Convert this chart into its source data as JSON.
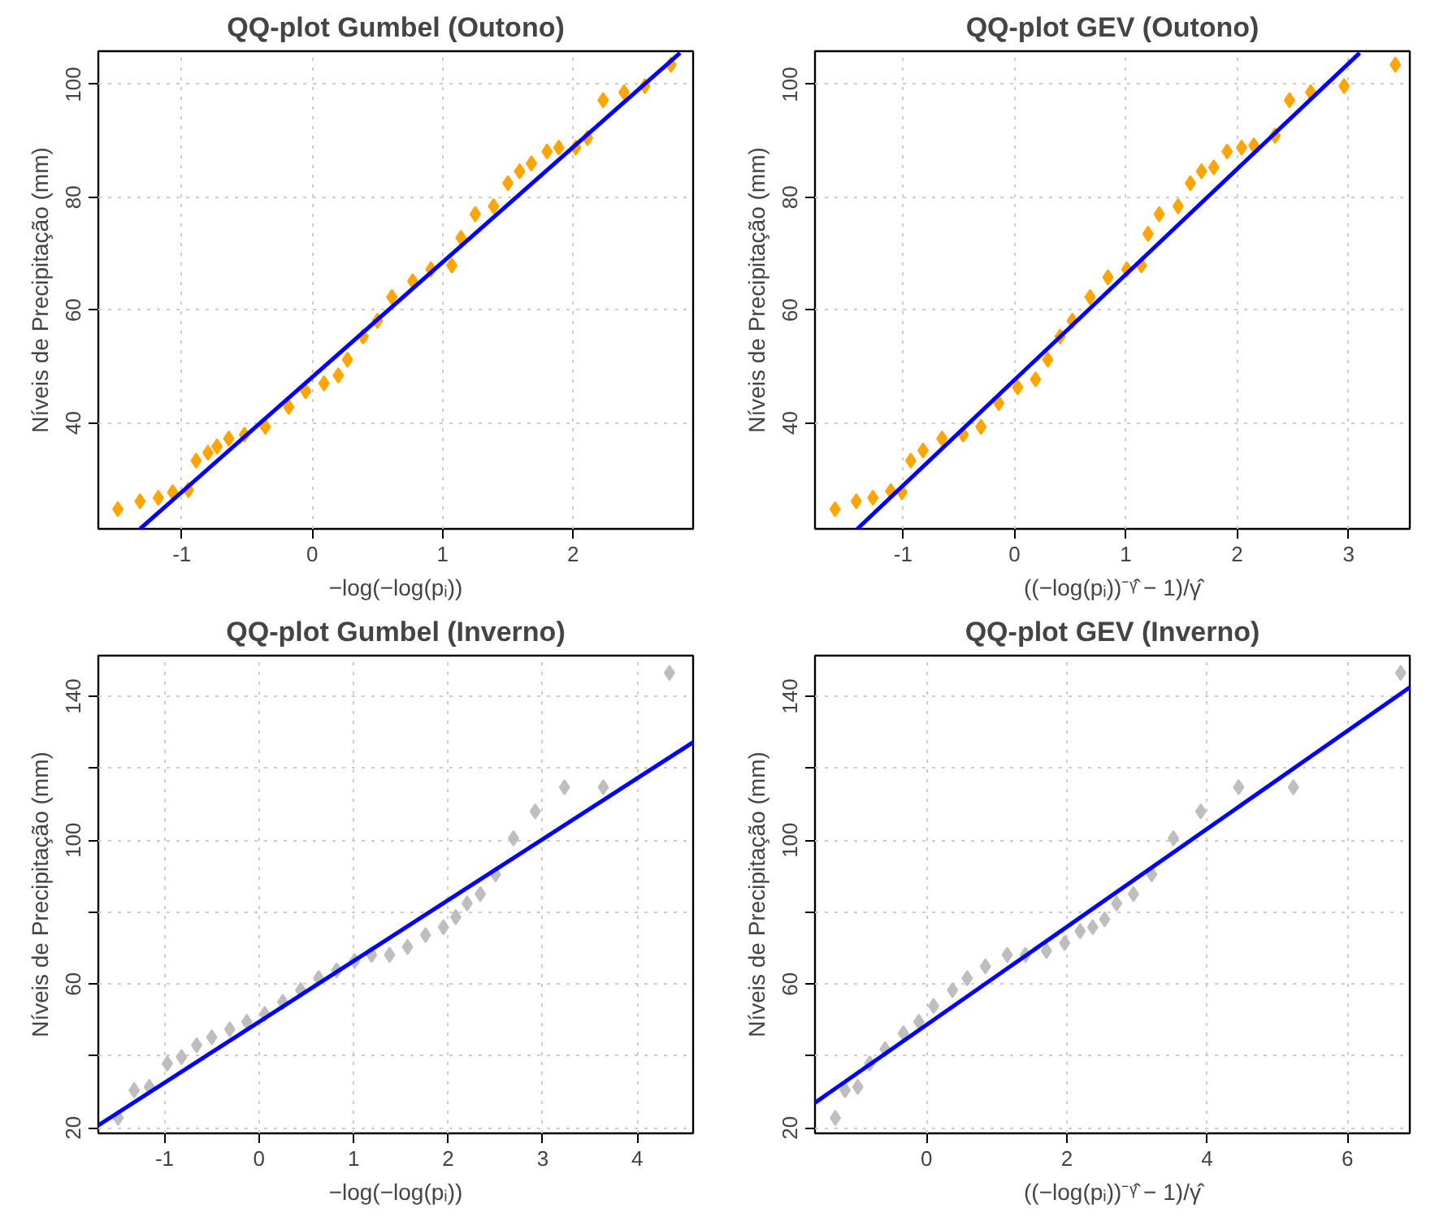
{
  "chart_data": [
    {
      "type": "scatter",
      "title": "QQ-plot Gumbel (Outono)",
      "xlabel": "−log(−log(pᵢ))",
      "ylabel": "Níveis de Precipitação (mm)",
      "xlim": [
        -1.64,
        2.92
      ],
      "ylim": [
        21.2,
        105.9
      ],
      "xticks": [
        -1,
        0,
        1,
        2
      ],
      "yticks": [
        40,
        60,
        80,
        100
      ],
      "grid": true,
      "series": [
        {
          "marker": "diamond",
          "color": "#ffa500",
          "x": [
            -1.49,
            -1.32,
            -1.18,
            -1.07,
            -0.95,
            -0.89,
            -0.8,
            -0.73,
            -0.64,
            -0.52,
            -0.36,
            -0.18,
            -0.05,
            0.09,
            0.2,
            0.27,
            0.39,
            0.5,
            0.61,
            0.77,
            0.91,
            1.07,
            1.14,
            1.25,
            1.39,
            1.5,
            1.59,
            1.68,
            1.8,
            1.89,
            2.02,
            2.11,
            2.23,
            2.39,
            2.55,
            2.75
          ],
          "values": [
            24.7,
            26.1,
            26.7,
            27.7,
            28.1,
            33.3,
            34.7,
            35.8,
            37.2,
            37.9,
            39.3,
            42.8,
            45.6,
            47.0,
            48.4,
            51.2,
            55.3,
            58.1,
            62.3,
            65.1,
            67.2,
            67.9,
            72.8,
            77.0,
            78.4,
            82.5,
            84.6,
            86.0,
            88.1,
            88.8,
            88.8,
            90.5,
            97.2,
            98.6,
            99.7,
            103.5
          ]
        },
        {
          "type": "line",
          "color": "#0000ff",
          "marker": "none",
          "x": [
            -1.32,
            2.82
          ],
          "values": [
            21.2,
            105.6
          ]
        }
      ]
    },
    {
      "type": "scatter",
      "title": "QQ-plot GEV (Outono)",
      "xlabel": "((−log(pᵢ))⁻ᵞ̂ − 1)/γ̂",
      "ylabel": "Níveis de Precipitação (mm)",
      "xlim": [
        -1.79,
        3.55
      ],
      "ylim": [
        21.2,
        105.9
      ],
      "xticks": [
        -1,
        0,
        1,
        2,
        3
      ],
      "yticks": [
        40,
        60,
        80,
        100
      ],
      "grid": true,
      "series": [
        {
          "marker": "diamond",
          "color": "#ffa500",
          "x": [
            -1.61,
            -1.42,
            -1.27,
            -1.11,
            -1.01,
            -0.93,
            -0.82,
            -0.65,
            -0.46,
            -0.3,
            -0.14,
            0.03,
            0.19,
            0.3,
            0.41,
            0.52,
            0.68,
            0.84,
            1.01,
            1.14,
            1.2,
            1.3,
            1.47,
            1.58,
            1.68,
            1.79,
            1.91,
            2.04,
            2.15,
            2.34,
            2.47,
            2.66,
            2.96,
            3.42
          ],
          "values": [
            24.7,
            26.1,
            26.7,
            27.9,
            27.7,
            33.3,
            35.1,
            37.2,
            37.9,
            39.3,
            43.5,
            46.3,
            47.7,
            51.2,
            55.3,
            58.1,
            62.3,
            65.8,
            67.2,
            67.9,
            73.5,
            77.0,
            78.4,
            82.5,
            84.6,
            85.3,
            88.1,
            88.8,
            89.2,
            90.9,
            97.2,
            98.6,
            99.7,
            103.5
          ]
        },
        {
          "type": "line",
          "color": "#0000ff",
          "marker": "none",
          "x": [
            -1.41,
            3.1
          ],
          "values": [
            21.2,
            105.6
          ]
        }
      ]
    },
    {
      "type": "scatter",
      "title": "QQ-plot Gumbel (Inverno)",
      "xlabel": "−log(−log(pᵢ))",
      "ylabel": "Níveis de Precipitação (mm)",
      "xlim": [
        -1.7,
        4.59
      ],
      "ylim": [
        18.5,
        151.3
      ],
      "xticks": [
        -1,
        0,
        1,
        2,
        3,
        4
      ],
      "yticks": [
        20,
        {
          "value": 40,
          "label": null
        },
        60,
        {
          "value": 80,
          "label": null
        },
        100,
        {
          "value": 120,
          "label": null
        },
        140
      ],
      "grid": true,
      "series": [
        {
          "marker": "diamond",
          "color": "#bebebe",
          "x": [
            -1.49,
            -1.32,
            -1.16,
            -0.97,
            -0.82,
            -0.66,
            -0.5,
            -0.31,
            -0.13,
            0.06,
            0.25,
            0.44,
            0.63,
            0.82,
            1.01,
            1.19,
            1.38,
            1.57,
            1.76,
            1.95,
            2.08,
            2.2,
            2.34,
            2.5,
            2.69,
            2.92,
            3.23,
            3.64,
            4.34
          ],
          "values": [
            22.8,
            30.5,
            31.4,
            37.9,
            39.7,
            43.0,
            45.2,
            47.4,
            49.5,
            51.7,
            55.0,
            58.3,
            61.6,
            63.8,
            66.4,
            68.1,
            68.1,
            70.3,
            73.6,
            75.8,
            78.6,
            82.4,
            85.0,
            90.5,
            100.5,
            108.0,
            114.7,
            114.7,
            146.5
          ]
        },
        {
          "type": "line",
          "color": "#0000ff",
          "marker": "none",
          "x": [
            -1.7,
            4.59
          ],
          "values": [
            20.7,
            127.2
          ]
        }
      ]
    },
    {
      "type": "scatter",
      "title": "QQ-plot GEV (Inverno)",
      "xlabel": "((−log(pᵢ))⁻ᵞ̂ − 1)/γ̂",
      "ylabel": "Níveis de Precipitação (mm)",
      "xlim": [
        -1.59,
        6.89
      ],
      "ylim": [
        18.5,
        151.3
      ],
      "xticks": [
        0,
        2,
        4,
        6
      ],
      "yticks": [
        20,
        {
          "value": 40,
          "label": null
        },
        60,
        {
          "value": 80,
          "label": null
        },
        100,
        {
          "value": 120,
          "label": null
        },
        140
      ],
      "grid": true,
      "series": [
        {
          "marker": "diamond",
          "color": "#bebebe",
          "x": [
            -1.3,
            -1.16,
            -0.98,
            -0.81,
            -0.59,
            -0.33,
            -0.11,
            0.1,
            0.37,
            0.58,
            0.84,
            1.15,
            1.41,
            1.71,
            1.97,
            2.19,
            2.37,
            2.54,
            2.71,
            2.95,
            3.21,
            3.52,
            3.91,
            4.45,
            5.23,
            6.76
          ],
          "values": [
            22.8,
            30.5,
            31.4,
            37.9,
            41.9,
            46.3,
            49.5,
            53.9,
            58.3,
            61.6,
            64.9,
            68.1,
            68.1,
            69.2,
            71.4,
            74.7,
            75.8,
            78.0,
            82.4,
            85.0,
            90.5,
            100.5,
            108.0,
            114.7,
            114.7,
            146.5
          ]
        },
        {
          "type": "line",
          "color": "#0000ff",
          "marker": "none",
          "x": [
            -1.59,
            6.89
          ],
          "values": [
            27.0,
            142.5
          ]
        }
      ]
    }
  ]
}
